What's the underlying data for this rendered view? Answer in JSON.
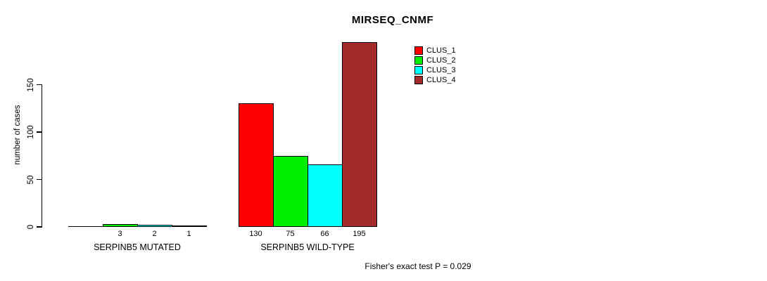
{
  "chart_data": {
    "type": "bar",
    "title": "MIRSEQ_CNMF",
    "ylabel": "number of cases",
    "xlabel": "",
    "yticks": [
      0,
      50,
      100,
      150
    ],
    "ylim": [
      0,
      195
    ],
    "grid": false,
    "legend_position": "top-right",
    "categories": [
      "SERPINB5 MUTATED",
      "SERPINB5 WILD-TYPE"
    ],
    "series": [
      {
        "name": "CLUS_1",
        "color": "#ff0000",
        "values": [
          0,
          130
        ]
      },
      {
        "name": "CLUS_2",
        "color": "#00ee00",
        "values": [
          3,
          75
        ]
      },
      {
        "name": "CLUS_3",
        "color": "#00ffff",
        "values": [
          2,
          66
        ]
      },
      {
        "name": "CLUS_4",
        "color": "#a52a2a",
        "values": [
          1,
          195
        ]
      }
    ],
    "bar_labels": [
      [
        "",
        "130"
      ],
      [
        "3",
        "75"
      ],
      [
        "2",
        "66"
      ],
      [
        "1",
        "195"
      ]
    ],
    "annotation": "Fisher's exact test P = 0.029"
  }
}
